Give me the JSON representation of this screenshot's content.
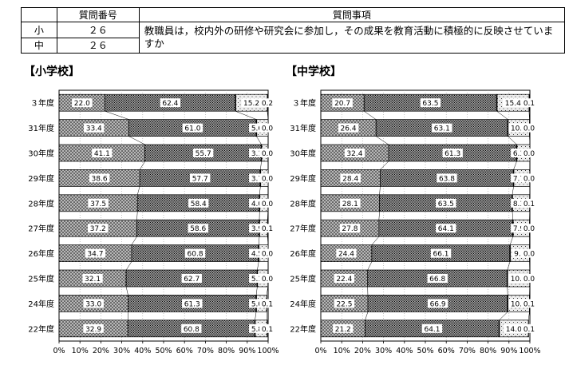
{
  "question_table": {
    "header_number": "質問番号",
    "header_item": "質問事項",
    "rows": [
      {
        "level": "小",
        "number": "２６"
      },
      {
        "level": "中",
        "number": "２６"
      }
    ],
    "question_text": "教職員は，校内外の研修や研究会に参加し，その成果を教育活動に積極的に反映させていますか"
  },
  "colors": {
    "seg1": "#b8b8b8",
    "seg2": "#a0a0a0",
    "seg3": "#ececec",
    "seg4": "#ffffff",
    "border": "#000000"
  },
  "chart_data": [
    {
      "type": "bar",
      "stacked": true,
      "orientation": "horizontal",
      "title": "【小学校】",
      "categories": [
        "３年度",
        "31年度",
        "30年度",
        "29年度",
        "28年度",
        "27年度",
        "26年度",
        "25年度",
        "24年度",
        "22年度"
      ],
      "series": [
        {
          "values": [
            22.0,
            33.4,
            41.1,
            38.6,
            37.5,
            37.2,
            34.7,
            32.1,
            33.0,
            32.9
          ]
        },
        {
          "values": [
            62.4,
            61.0,
            55.7,
            57.7,
            58.4,
            58.6,
            60.8,
            62.7,
            61.3,
            60.8
          ]
        },
        {
          "values": [
            15.2,
            5.6,
            3.1,
            3.7,
            4.0,
            3.9,
            4.5,
            5.1,
            5.0,
            5.8
          ]
        },
        {
          "values": [
            0.2,
            0.0,
            0.0,
            0.0,
            0.0,
            0.1,
            0.0,
            0.0,
            0.1,
            0.1
          ]
        }
      ],
      "label_values": [
        [
          "22.0",
          "62.4",
          "15.2",
          "0.2"
        ],
        [
          "33.4",
          "61.0",
          "5.6",
          "0.0"
        ],
        [
          "41.1",
          "55.7",
          "3.1",
          "0.0"
        ],
        [
          "38.6",
          "57.7",
          "3.7",
          "0.0"
        ],
        [
          "37.5",
          "58.4",
          "4.0",
          "0.0"
        ],
        [
          "37.2",
          "58.6",
          "3.9",
          "0.1"
        ],
        [
          "34.7",
          "60.8",
          "4.5",
          "0.0"
        ],
        [
          "32.1",
          "62.7",
          "5.1",
          "0.0"
        ],
        [
          "33.0",
          "61.3",
          "5.0",
          "0.1"
        ],
        [
          "32.9",
          "60.8",
          "5.8",
          "0.1"
        ]
      ],
      "xlim": [
        0,
        100
      ],
      "xticks": [
        "0%",
        "10%",
        "20%",
        "30%",
        "40%",
        "50%",
        "60%",
        "70%",
        "80%",
        "90%",
        "100%"
      ],
      "grid": true
    },
    {
      "type": "bar",
      "stacked": true,
      "orientation": "horizontal",
      "title": "【中学校】",
      "categories": [
        "３年度",
        "31年度",
        "30年度",
        "29年度",
        "28年度",
        "27年度",
        "26年度",
        "25年度",
        "24年度",
        "22年度"
      ],
      "series": [
        {
          "values": [
            20.7,
            26.4,
            32.4,
            28.4,
            28.1,
            27.8,
            24.4,
            22.4,
            22.5,
            21.2
          ]
        },
        {
          "values": [
            63.5,
            63.1,
            61.3,
            63.8,
            63.5,
            64.1,
            66.1,
            66.8,
            66.9,
            64.1
          ]
        },
        {
          "values": [
            15.4,
            10.3,
            6.3,
            7.7,
            8.3,
            7.9,
            9.3,
            10.7,
            10.4,
            14.0
          ]
        },
        {
          "values": [
            0.1,
            0.0,
            0.0,
            0.0,
            0.1,
            0.0,
            0.0,
            0.0,
            0.1,
            0.1
          ]
        }
      ],
      "label_values": [
        [
          "20.7",
          "63.5",
          "15.4",
          "0.1"
        ],
        [
          "26.4",
          "63.1",
          "10.3",
          "0.0"
        ],
        [
          "32.4",
          "61.3",
          "6.3",
          "0.0"
        ],
        [
          "28.4",
          "63.8",
          "7.7",
          "0.0"
        ],
        [
          "28.1",
          "63.5",
          "8.3",
          "0.1"
        ],
        [
          "27.8",
          "64.1",
          "7.9",
          "0.0"
        ],
        [
          "24.4",
          "66.1",
          "9.3",
          "0.0"
        ],
        [
          "22.4",
          "66.8",
          "10.7",
          "0.0"
        ],
        [
          "22.5",
          "66.9",
          "10.4",
          "0.1"
        ],
        [
          "21.2",
          "64.1",
          "14.0",
          "0.1"
        ]
      ],
      "xlim": [
        0,
        100
      ],
      "xticks": [
        "0%",
        "10%",
        "20%",
        "30%",
        "40%",
        "50%",
        "60%",
        "70%",
        "80%",
        "90%",
        "100%"
      ],
      "grid": true
    }
  ]
}
